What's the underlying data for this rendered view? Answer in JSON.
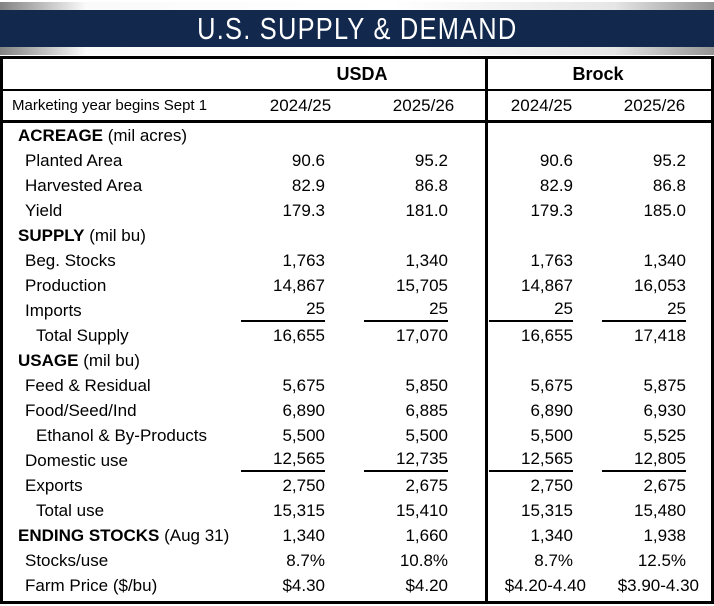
{
  "colors": {
    "banner_navy": "#12294d",
    "banner_text": "#ffffff",
    "border_black": "#000000"
  },
  "banner": {
    "title": "U.S. SUPPLY & DEMAND"
  },
  "table": {
    "group_headers": {
      "usda": "USDA",
      "brock": "Brock"
    },
    "meta_row": {
      "label": "Marketing year begins Sept 1",
      "usda_years": [
        "2024/25",
        "2025/26"
      ],
      "brock_years": [
        "2024/25",
        "2025/26"
      ]
    },
    "rows": [
      {
        "label": "ACREAGE",
        "suffix": " (mil acres)",
        "values": [
          "",
          "",
          "",
          ""
        ]
      },
      {
        "label": "Planted Area",
        "values": [
          "90.6",
          "95.2",
          "90.6",
          "95.2"
        ]
      },
      {
        "label": "Harvested Area",
        "values": [
          "82.9",
          "86.8",
          "82.9",
          "86.8"
        ]
      },
      {
        "label": "Yield",
        "values": [
          "179.3",
          "181.0",
          "179.3",
          "185.0"
        ]
      },
      {
        "label": "SUPPLY",
        "suffix": " (mil bu)",
        "values": [
          "",
          "",
          "",
          ""
        ]
      },
      {
        "label": "Beg. Stocks",
        "values": [
          "1,763",
          "1,340",
          "1,763",
          "1,340"
        ]
      },
      {
        "label": "Production",
        "values": [
          "14,867",
          "15,705",
          "14,867",
          "16,053"
        ]
      },
      {
        "label": "Imports",
        "values": [
          "25",
          "25",
          "25",
          "25"
        ]
      },
      {
        "label": "Total Supply",
        "values": [
          "16,655",
          "17,070",
          "16,655",
          "17,418"
        ]
      },
      {
        "label": "USAGE",
        "suffix": " (mil bu)",
        "values": [
          "",
          "",
          "",
          ""
        ]
      },
      {
        "label": "Feed & Residual",
        "values": [
          "5,675",
          "5,850",
          "5,675",
          "5,875"
        ]
      },
      {
        "label": "Food/Seed/Ind",
        "values": [
          "6,890",
          "6,885",
          "6,890",
          "6,930"
        ]
      },
      {
        "label": "Ethanol & By-Products",
        "values": [
          "5,500",
          "5,500",
          "5,500",
          "5,525"
        ]
      },
      {
        "label": "Domestic use",
        "values": [
          "12,565",
          "12,735",
          "12,565",
          "12,805"
        ]
      },
      {
        "label": "Exports",
        "values": [
          "2,750",
          "2,675",
          "2,750",
          "2,675"
        ]
      },
      {
        "label": "Total use",
        "values": [
          "15,315",
          "15,410",
          "15,315",
          "15,480"
        ]
      },
      {
        "label": "ENDING STOCKS",
        "suffix": " (Aug 31)",
        "values": [
          "1,340",
          "1,660",
          "1,340",
          "1,938"
        ]
      },
      {
        "label": "Stocks/use",
        "values": [
          "8.7%",
          "10.8%",
          "8.7%",
          "12.5%"
        ]
      },
      {
        "label": "Farm Price ($/bu)",
        "values": [
          "$4.30",
          "$4.20",
          "$4.20-4.40",
          "$3.90-4.30"
        ]
      }
    ]
  }
}
